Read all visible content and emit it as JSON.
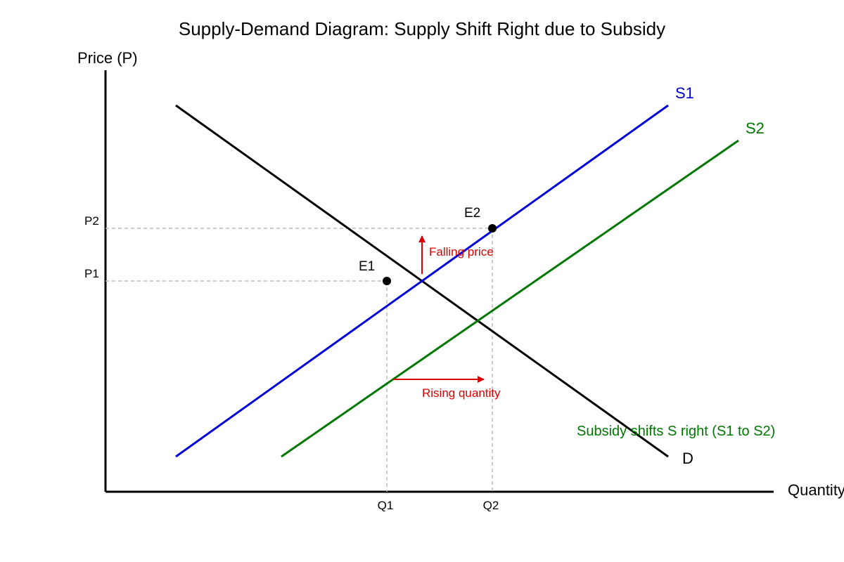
{
  "diagram": {
    "title": "Supply-Demand Diagram: Supply Shift Right due to Subsidy",
    "y_axis_label": "Price (P)",
    "x_axis_label": "Quantity",
    "price_ticks": [
      "P2",
      "P1"
    ],
    "quantity_ticks": [
      "Q1",
      "Q2"
    ],
    "curves": {
      "s1": {
        "label": "S1",
        "color": "#0000dd"
      },
      "s2": {
        "label": "S2",
        "color": "#007700"
      },
      "d": {
        "label": "D",
        "color": "#000000"
      }
    },
    "points": {
      "e1": "E1",
      "e2": "E2"
    },
    "annotations": {
      "price_arrow": "Falling price",
      "quantity_arrow": "Rising quantity",
      "arrow_color": "#dd0000",
      "shift_note": "Subsidy shifts S right (S1 to S2)"
    }
  }
}
